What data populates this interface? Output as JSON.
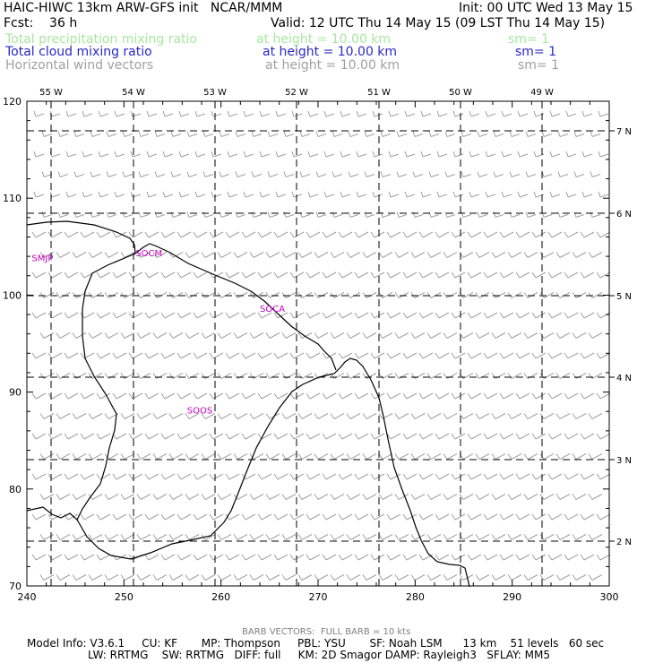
{
  "header": {
    "model_title": "HAIC-HIWC 13km ARW-GFS init   NCAR/MMM",
    "init": "Init: 00 UTC Wed 13 May 15",
    "fcst": "Fcst:    36 h",
    "valid": "Valid: 12 UTC Thu 14 May 15 (09 LST Thu 14 May 15)"
  },
  "fields": [
    {
      "name": "Total precipitation mixing ratio",
      "height": "at height = 10.00 km",
      "sm": "sm= 1",
      "color": "#a8e8a0"
    },
    {
      "name": "Total cloud mixing ratio",
      "height": "at height = 10.00 km",
      "sm": "sm= 1",
      "color": "#2828c8"
    },
    {
      "name": "Horizontal wind vectors",
      "height": "at height = 10.00 km",
      "sm": "sm= 1",
      "color": "#a0a0a0"
    }
  ],
  "map": {
    "x_ticks": [
      "240",
      "250",
      "260",
      "270",
      "280",
      "290",
      "300"
    ],
    "y_ticks": [
      "70",
      "80",
      "90",
      "100",
      "110",
      "120"
    ],
    "lon_labels": [
      "55 W",
      "54 W",
      "53 W",
      "52 W",
      "51 W",
      "50 W",
      "49 W"
    ],
    "lat_labels": [
      "7 N",
      "6 N",
      "5 N",
      "4 N",
      "3 N",
      "2 N"
    ],
    "stations": [
      {
        "id": "SMJP",
        "x": 240.5,
        "y": 103.5
      },
      {
        "id": "SOCM",
        "x": 251.2,
        "y": 104.0
      },
      {
        "id": "SOCA",
        "x": 264.0,
        "y": 98.3
      },
      {
        "id": "SOOS",
        "x": 256.5,
        "y": 87.8
      }
    ],
    "station_color": "#c000c0",
    "barb_color": "#a0a0a0"
  },
  "footer": {
    "barb_note": "BARB VECTORS:  FULL BARB = 10 kts",
    "model_info_1": "Model Info: V3.6.1     CU: KF       MP: Thompson     PBL: YSU       SF: Noah LSM      13 km    51 levels   60 sec",
    "model_info_2": "LW: RRTMG    SW: RRTMG   DIFF: full     KM: 2D Smagor DAMP: Rayleigh3   SFLAY: MM5"
  }
}
